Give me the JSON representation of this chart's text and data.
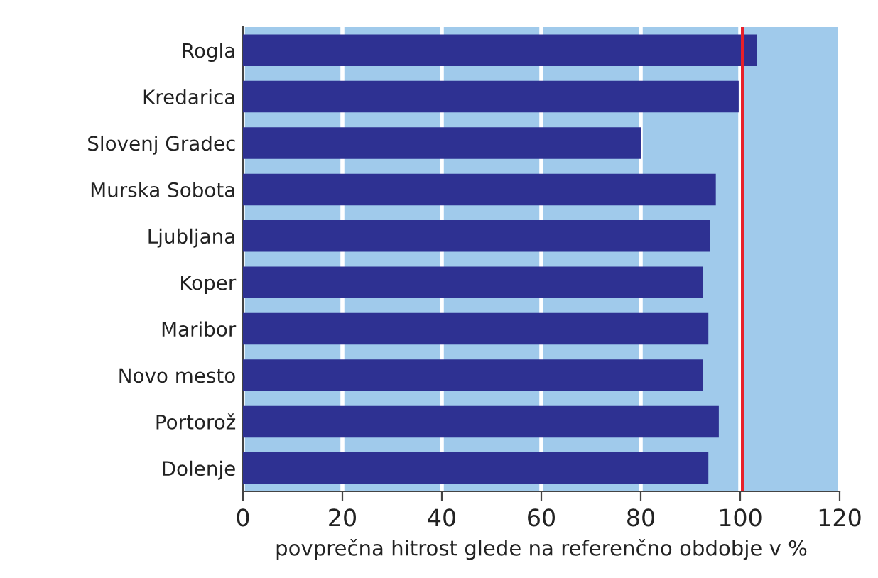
{
  "chart_data": {
    "type": "bar",
    "orientation": "horizontal",
    "xlabel": "povprečna hitrost glede na referenčno obdobje v %",
    "categories": [
      "Rogla",
      "Kredarica",
      "Slovenj Gradec",
      "Murska Sobota",
      "Ljubljana",
      "Koper",
      "Maribor",
      "Novo mesto",
      "Portorož",
      "Dolenje"
    ],
    "values": [
      103.4,
      99.7,
      80,
      95.1,
      93.9,
      92.5,
      93.6,
      92.5,
      95.7,
      93.6
    ],
    "color": "#2e3192",
    "xlim": [
      0,
      120
    ],
    "xticks": [
      0,
      20,
      40,
      60,
      80,
      100,
      120
    ],
    "grid": "x",
    "bands": [
      {
        "axis": "x",
        "from": 0,
        "to": 120,
        "color": "#a0caeb"
      }
    ],
    "ref_lines": [
      {
        "axis": "x",
        "value": 100.5,
        "color": "#e8202a"
      }
    ]
  }
}
